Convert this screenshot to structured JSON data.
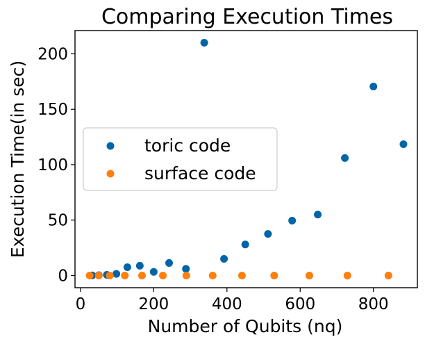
{
  "chart_data": {
    "type": "scatter",
    "title": "Comparing Execution Times",
    "xlabel": "Number of Qubits (nq)",
    "ylabel": "Execution Time(in sec)",
    "xlim": [
      -15,
      920
    ],
    "ylim": [
      -11,
      221
    ],
    "xticks": [
      0,
      200,
      400,
      600,
      800
    ],
    "yticks": [
      0,
      50,
      100,
      150,
      200
    ],
    "xtick_labels": [
      "0",
      "200",
      "400",
      "600",
      "800"
    ],
    "ytick_labels": [
      "0",
      "50",
      "100",
      "150",
      "200"
    ],
    "grid": false,
    "legend_position": "center-left",
    "series": [
      {
        "name": "toric code",
        "color": "#0065a8",
        "points": [
          {
            "x": 32,
            "y": 0.1
          },
          {
            "x": 50,
            "y": 0.3
          },
          {
            "x": 72,
            "y": 0.6
          },
          {
            "x": 98,
            "y": 1.5
          },
          {
            "x": 128,
            "y": 7.5
          },
          {
            "x": 162,
            "y": 8.8
          },
          {
            "x": 200,
            "y": 3.3
          },
          {
            "x": 242,
            "y": 11.3
          },
          {
            "x": 288,
            "y": 6.0
          },
          {
            "x": 338,
            "y": 210.0
          },
          {
            "x": 392,
            "y": 15.0
          },
          {
            "x": 450,
            "y": 28.0
          },
          {
            "x": 512,
            "y": 37.5
          },
          {
            "x": 578,
            "y": 49.5
          },
          {
            "x": 648,
            "y": 55.0
          },
          {
            "x": 722,
            "y": 106.0
          },
          {
            "x": 800,
            "y": 170.5
          },
          {
            "x": 882,
            "y": 118.5
          }
        ]
      },
      {
        "name": "surface code",
        "color": "#ff7f0e",
        "points": [
          {
            "x": 25,
            "y": 0.0
          },
          {
            "x": 50,
            "y": 0.0
          },
          {
            "x": 80,
            "y": 0.0
          },
          {
            "x": 121,
            "y": 0.0
          },
          {
            "x": 168,
            "y": 0.0
          },
          {
            "x": 225,
            "y": 0.0
          },
          {
            "x": 289,
            "y": 0.0
          },
          {
            "x": 361,
            "y": 0.0
          },
          {
            "x": 441,
            "y": 0.0
          },
          {
            "x": 529,
            "y": 0.0
          },
          {
            "x": 625,
            "y": 0.0
          },
          {
            "x": 729,
            "y": 0.0
          },
          {
            "x": 841,
            "y": 0.0
          }
        ]
      }
    ]
  }
}
